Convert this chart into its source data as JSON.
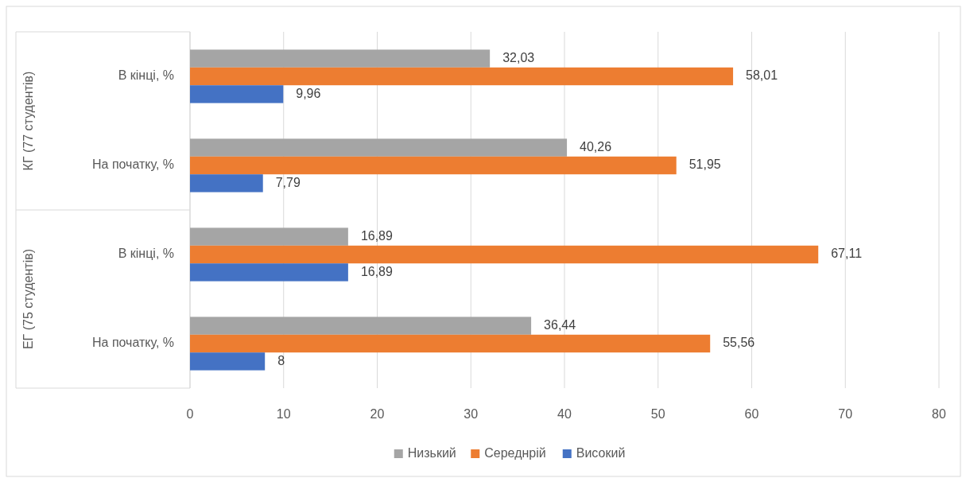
{
  "chart_data": {
    "type": "bar",
    "orientation": "horizontal",
    "categories": [
      "В кінці, %",
      "На початку, %",
      "В кінці, %",
      "На початку, %"
    ],
    "annotations": [
      "КГ (77 студентів)",
      "ЕГ (75 студентів)"
    ],
    "series": [
      {
        "name": "Низький",
        "color": "#a5a5a5",
        "values": [
          32.03,
          40.26,
          16.89,
          36.44
        ],
        "value_labels": [
          "32,03",
          "40,26",
          "16,89",
          "36,44"
        ]
      },
      {
        "name": "Середнрій",
        "color": "#ed7d31",
        "values": [
          58.01,
          51.95,
          67.11,
          55.56
        ],
        "value_labels": [
          "58,01",
          "51,95",
          "67,11",
          "55,56"
        ]
      },
      {
        "name": "Високий",
        "color": "#4472c4",
        "values": [
          9.96,
          7.79,
          16.89,
          8
        ],
        "value_labels": [
          "9,96",
          "7,79",
          "16,89",
          "8"
        ]
      }
    ],
    "xlim": [
      0,
      80
    ],
    "xticks": [
      0,
      10,
      20,
      30,
      40,
      50,
      60,
      70,
      80
    ],
    "grid": "x",
    "legend": "bottom"
  }
}
